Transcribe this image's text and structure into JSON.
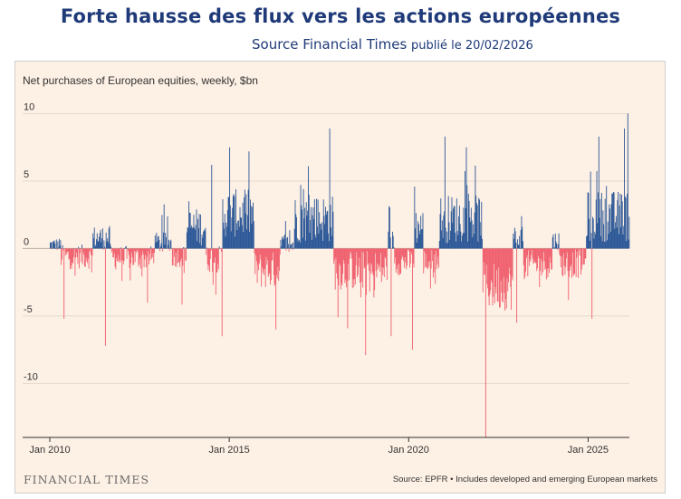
{
  "header": {
    "title": "Forte hausse des flux vers les actions européennes",
    "source_label": "Source Financial Times",
    "published": "publié le 20/02/2026"
  },
  "footer": {
    "brand": "FINANCIAL TIMES",
    "note": "Source: EPFR • Includes developed and emerging European markets"
  },
  "colors": {
    "positive": "#2b5797",
    "negative": "#f0606e",
    "grid": "#e6d9cc",
    "background": "#fdf0e4"
  },
  "chart_data": {
    "type": "bar",
    "title": "Net purchases of European equities, weekly, $bn",
    "xlabel": "",
    "ylabel": "$bn",
    "x_range": [
      2010.0,
      2026.15
    ],
    "ylim": [
      -14,
      10.5
    ],
    "y_ticks": [
      10,
      5,
      0,
      -5,
      -10
    ],
    "y_tick_labels": [
      "10",
      "5",
      "0",
      "-5",
      "-10"
    ],
    "x_ticks": [
      2010,
      2015,
      2020,
      2025
    ],
    "x_tick_labels": [
      "Jan 2010",
      "Jan 2015",
      "Jan 2020",
      "Jan 2025"
    ],
    "series_note": "weekly net flows; positive in blue, negative in red",
    "periods": [
      {
        "start": 2010.0,
        "end": 2010.3,
        "base": 0.3,
        "amp": 0.5
      },
      {
        "start": 2010.3,
        "end": 2011.2,
        "base": -0.6,
        "amp": 0.9
      },
      {
        "start": 2011.2,
        "end": 2011.7,
        "base": 0.8,
        "amp": 0.9
      },
      {
        "start": 2011.7,
        "end": 2012.9,
        "base": -0.7,
        "amp": 0.9
      },
      {
        "start": 2012.9,
        "end": 2013.4,
        "base": 0.4,
        "amp": 0.8
      },
      {
        "start": 2013.4,
        "end": 2013.8,
        "base": -0.6,
        "amp": 0.8
      },
      {
        "start": 2013.8,
        "end": 2014.35,
        "base": 1.6,
        "amp": 1.4
      },
      {
        "start": 2014.35,
        "end": 2014.8,
        "base": -0.8,
        "amp": 1.0
      },
      {
        "start": 2014.8,
        "end": 2015.7,
        "base": 2.6,
        "amp": 1.8
      },
      {
        "start": 2015.7,
        "end": 2016.4,
        "base": -1.6,
        "amp": 1.4
      },
      {
        "start": 2016.4,
        "end": 2016.8,
        "base": 0.3,
        "amp": 0.8
      },
      {
        "start": 2016.8,
        "end": 2017.9,
        "base": 2.2,
        "amp": 1.8
      },
      {
        "start": 2017.9,
        "end": 2019.4,
        "base": -1.6,
        "amp": 1.5
      },
      {
        "start": 2019.4,
        "end": 2019.6,
        "base": 0.6,
        "amp": 0.8
      },
      {
        "start": 2019.6,
        "end": 2020.15,
        "base": -1.0,
        "amp": 1.0
      },
      {
        "start": 2020.15,
        "end": 2020.4,
        "base": 1.6,
        "amp": 1.4
      },
      {
        "start": 2020.4,
        "end": 2020.85,
        "base": -1.0,
        "amp": 1.0
      },
      {
        "start": 2020.85,
        "end": 2022.05,
        "base": 2.2,
        "amp": 1.8
      },
      {
        "start": 2022.05,
        "end": 2022.9,
        "base": -2.8,
        "amp": 1.8
      },
      {
        "start": 2022.9,
        "end": 2023.2,
        "base": 0.8,
        "amp": 0.9
      },
      {
        "start": 2023.2,
        "end": 2024.0,
        "base": -1.2,
        "amp": 1.1
      },
      {
        "start": 2024.0,
        "end": 2024.2,
        "base": 0.6,
        "amp": 0.7
      },
      {
        "start": 2024.2,
        "end": 2024.95,
        "base": -1.1,
        "amp": 1.1
      },
      {
        "start": 2024.95,
        "end": 2026.15,
        "base": 2.4,
        "amp": 1.9
      }
    ],
    "extremes": [
      {
        "x": 2022.15,
        "y": -14.0
      },
      {
        "x": 2018.8,
        "y": -7.9
      },
      {
        "x": 2020.1,
        "y": -7.5
      },
      {
        "x": 2011.55,
        "y": -7.2
      },
      {
        "x": 2015.0,
        "y": 7.5
      },
      {
        "x": 2017.8,
        "y": 8.9
      },
      {
        "x": 2021.0,
        "y": 8.3
      },
      {
        "x": 2021.6,
        "y": 7.5
      },
      {
        "x": 2025.3,
        "y": 8.3
      },
      {
        "x": 2026.1,
        "y": 10.0
      },
      {
        "x": 2026.0,
        "y": 8.9
      },
      {
        "x": 2025.1,
        "y": -5.2
      },
      {
        "x": 2010.4,
        "y": -5.2
      },
      {
        "x": 2014.8,
        "y": -6.5
      },
      {
        "x": 2016.3,
        "y": -6.0
      },
      {
        "x": 2019.5,
        "y": -6.5
      },
      {
        "x": 2023.0,
        "y": -5.5
      },
      {
        "x": 2014.5,
        "y": 6.2
      },
      {
        "x": 2017.2,
        "y": 6.1
      }
    ]
  }
}
